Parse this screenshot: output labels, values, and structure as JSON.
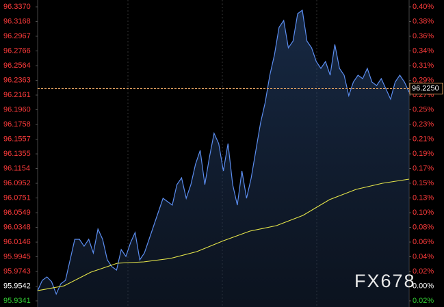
{
  "chart_data": {
    "type": "line",
    "ylim": [
      95.9341,
      96.337
    ],
    "yticks": [
      {
        "value": 96.337,
        "label": "96.3370"
      },
      96.3168,
      96.2967,
      96.2766,
      96.2564,
      96.2363,
      96.2161,
      {
        "value": 96.196,
        "label": "96.1960"
      },
      96.1758,
      96.1557,
      96.1355,
      96.1154,
      96.0952,
      96.0751,
      96.0549,
      96.0348,
      96.0146,
      95.9945,
      95.9743,
      95.9542,
      95.9341
    ],
    "y2lim": [
      -0.021,
      0.399
    ],
    "y2ticks": [
      {
        "value": 0.399,
        "label": "0.40%"
      },
      {
        "value": 0.378,
        "label": "0.38%"
      },
      {
        "value": 0.357,
        "label": "0.36%"
      },
      {
        "value": 0.336,
        "label": "0.34%"
      },
      {
        "value": 0.3149,
        "label": "0.31%"
      },
      {
        "value": 0.294,
        "label": "0.29%"
      },
      {
        "value": 0.273,
        "label": "0.27%"
      },
      {
        "value": 0.252,
        "label": "0.25%"
      },
      {
        "value": 0.231,
        "label": "0.23%"
      },
      {
        "value": 0.21,
        "label": "0.21%"
      },
      {
        "value": 0.189,
        "label": "0.19%"
      },
      {
        "value": 0.168,
        "label": "0.17%"
      },
      {
        "value": 0.147,
        "label": "0.15%"
      },
      {
        "value": 0.126,
        "label": "0.13%"
      },
      {
        "value": 0.1049,
        "label": "0.10%"
      },
      {
        "value": 0.084,
        "label": "0.08%"
      },
      {
        "value": 0.063,
        "label": "0.06%"
      },
      {
        "value": 0.042,
        "label": "0.04%"
      },
      {
        "value": 0.021,
        "label": "0.02%"
      },
      {
        "value": 0,
        "label": "0.00%"
      },
      {
        "value": -0.021,
        "label": "0.02%"
      }
    ],
    "up_color": "#ff3b3b",
    "down_color": "#33cc33",
    "flat_color": "#ffffff",
    "series": [
      {
        "color": "#5b8def",
        "fill": true,
        "values": [
          95.9481,
          95.9622,
          95.9669,
          95.9603,
          95.9435,
          95.9575,
          95.9622,
          95.9903,
          96.0184,
          96.0184,
          96.009,
          96.0184,
          95.9997,
          96.0325,
          96.0184,
          95.9903,
          95.9809,
          95.9763,
          96.0044,
          95.995,
          96.0137,
          96.0278,
          95.9903,
          95.9997,
          96.0184,
          96.0372,
          96.0559,
          96.0746,
          96.07,
          96.0653,
          96.0934,
          96.1027,
          96.0746,
          96.0934,
          96.1215,
          96.1402,
          96.0934,
          96.1309,
          96.1637,
          96.1496,
          96.1121,
          96.1496,
          96.0934,
          96.0653,
          96.1121,
          96.0746,
          96.1027,
          96.1402,
          96.1777,
          96.2058,
          96.2433,
          96.2714,
          96.3089,
          96.3183,
          96.2808,
          96.2901,
          96.3276,
          96.3323,
          96.2901,
          96.2808,
          96.262,
          96.2527,
          96.262,
          96.2433,
          96.2855,
          96.2527,
          96.2433,
          96.2152,
          96.2339,
          96.2433,
          96.2386,
          96.2527,
          96.2339,
          96.2292,
          96.2386,
          96.2246,
          96.2105,
          96.2339,
          96.2433,
          96.2339,
          96.2199
        ]
      },
      {
        "color": "#e6e64a",
        "fill": false,
        "values": [
          95.9481,
          95.9547,
          95.9734,
          95.9856,
          95.9875,
          95.9922,
          96.0016,
          96.0165,
          96.0297,
          96.0372,
          96.0512,
          96.0728,
          96.0868,
          96.0953,
          96.1009
        ]
      }
    ],
    "reference_line": {
      "value": 96.225,
      "label": "96.2250",
      "color": "#e0a060"
    },
    "watermark": "FX678"
  }
}
